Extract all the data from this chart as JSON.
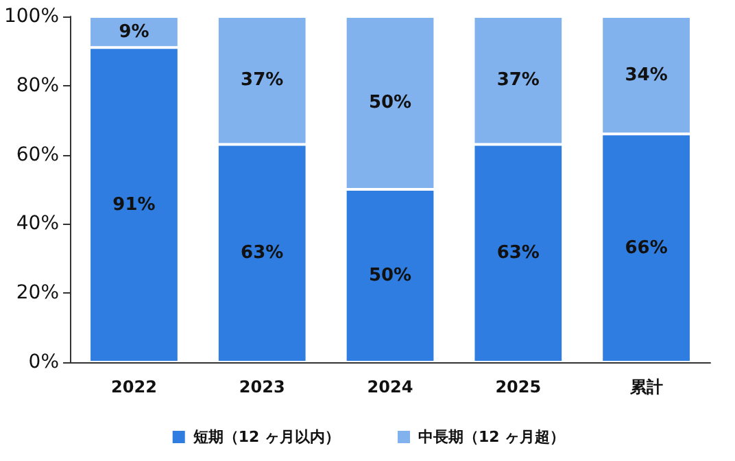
{
  "chart_data": {
    "type": "bar",
    "stacked": true,
    "categories": [
      "2022",
      "2023",
      "2024",
      "2025",
      "累計"
    ],
    "series": [
      {
        "name": "短期（12 ヶ月以内）",
        "color": "#2f7de1",
        "values": [
          91,
          63,
          50,
          63,
          66
        ],
        "value_labels": [
          "91%",
          "63%",
          "50%",
          "63%",
          "66%"
        ]
      },
      {
        "name": "中長期（12 ヶ月超）",
        "color": "#82b2ee",
        "values": [
          9,
          37,
          50,
          37,
          34
        ],
        "value_labels": [
          "9%",
          "37%",
          "50%",
          "37%",
          "34%"
        ]
      }
    ],
    "ylim": [
      0,
      100
    ],
    "yticks": [
      {
        "value": 0,
        "label": "0%"
      },
      {
        "value": 20,
        "label": "20%"
      },
      {
        "value": 40,
        "label": "40%"
      },
      {
        "value": 60,
        "label": "60%"
      },
      {
        "value": 80,
        "label": "80%"
      },
      {
        "value": 100,
        "label": "100%"
      }
    ],
    "grid": false,
    "legend": "bottom"
  }
}
